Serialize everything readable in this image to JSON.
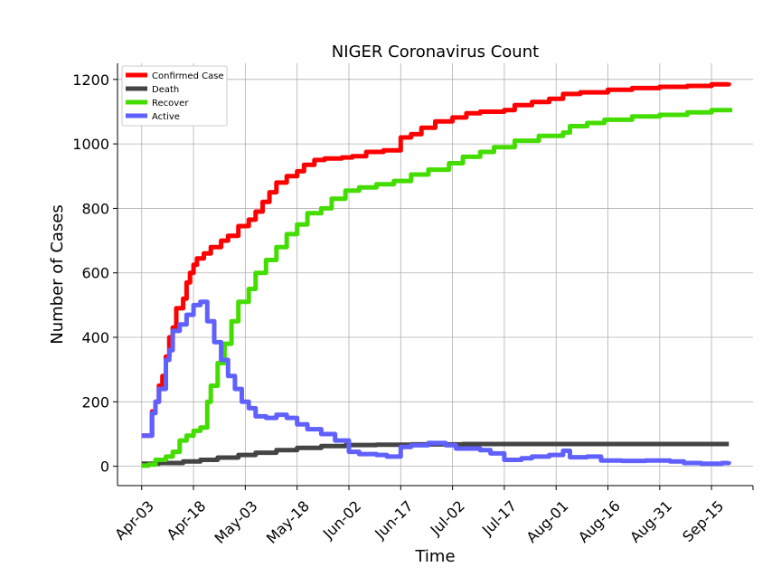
{
  "chart_data": {
    "type": "line",
    "title": "NIGER Coronavirus Count",
    "xlabel": "Time",
    "ylabel": "Number of Cases",
    "x_ticks": [
      "Apr-03",
      "Apr-18",
      "May-03",
      "May-18",
      "Jun-02",
      "Jun-17",
      "Jul-02",
      "Jul-17",
      "Aug-01",
      "Aug-16",
      "Aug-31",
      "Sep-15"
    ],
    "xlim": [
      "2020-03-27",
      "2020-09-27"
    ],
    "ylim": [
      -60,
      1250
    ],
    "y_ticks": [
      0,
      200,
      400,
      600,
      800,
      1000,
      1200
    ],
    "grid": true,
    "legend_position": "top-left",
    "series": [
      {
        "name": "Confirmed Case",
        "color": "#ff0000",
        "points": [
          [
            "2020-04-03",
            95
          ],
          [
            "2020-04-06",
            170
          ],
          [
            "2020-04-07",
            200
          ],
          [
            "2020-04-08",
            250
          ],
          [
            "2020-04-09",
            280
          ],
          [
            "2020-04-10",
            340
          ],
          [
            "2020-04-11",
            400
          ],
          [
            "2020-04-12",
            430
          ],
          [
            "2020-04-13",
            490
          ],
          [
            "2020-04-15",
            520
          ],
          [
            "2020-04-16",
            570
          ],
          [
            "2020-04-17",
            600
          ],
          [
            "2020-04-18",
            625
          ],
          [
            "2020-04-19",
            645
          ],
          [
            "2020-04-21",
            660
          ],
          [
            "2020-04-23",
            680
          ],
          [
            "2020-04-26",
            700
          ],
          [
            "2020-04-28",
            715
          ],
          [
            "2020-05-01",
            745
          ],
          [
            "2020-05-04",
            765
          ],
          [
            "2020-05-06",
            790
          ],
          [
            "2020-05-08",
            820
          ],
          [
            "2020-05-10",
            850
          ],
          [
            "2020-05-12",
            880
          ],
          [
            "2020-05-15",
            900
          ],
          [
            "2020-05-18",
            915
          ],
          [
            "2020-05-20",
            935
          ],
          [
            "2020-05-23",
            950
          ],
          [
            "2020-05-26",
            955
          ],
          [
            "2020-05-31",
            958
          ],
          [
            "2020-06-03",
            962
          ],
          [
            "2020-06-07",
            975
          ],
          [
            "2020-06-12",
            980
          ],
          [
            "2020-06-17",
            1020
          ],
          [
            "2020-06-20",
            1030
          ],
          [
            "2020-06-23",
            1050
          ],
          [
            "2020-06-27",
            1070
          ],
          [
            "2020-07-02",
            1082
          ],
          [
            "2020-07-06",
            1095
          ],
          [
            "2020-07-10",
            1100
          ],
          [
            "2020-07-17",
            1105
          ],
          [
            "2020-07-20",
            1120
          ],
          [
            "2020-07-25",
            1130
          ],
          [
            "2020-07-30",
            1140
          ],
          [
            "2020-08-03",
            1155
          ],
          [
            "2020-08-08",
            1160
          ],
          [
            "2020-08-16",
            1168
          ],
          [
            "2020-08-23",
            1173
          ],
          [
            "2020-08-31",
            1177
          ],
          [
            "2020-09-08",
            1180
          ],
          [
            "2020-09-15",
            1185
          ],
          [
            "2020-09-20",
            1190
          ]
        ]
      },
      {
        "name": "Death",
        "color": "#444444",
        "points": [
          [
            "2020-04-03",
            8
          ],
          [
            "2020-04-08",
            10
          ],
          [
            "2020-04-15",
            15
          ],
          [
            "2020-04-20",
            20
          ],
          [
            "2020-04-25",
            27
          ],
          [
            "2020-05-01",
            35
          ],
          [
            "2020-05-06",
            42
          ],
          [
            "2020-05-12",
            50
          ],
          [
            "2020-05-18",
            57
          ],
          [
            "2020-05-25",
            63
          ],
          [
            "2020-06-01",
            66
          ],
          [
            "2020-06-10",
            67
          ],
          [
            "2020-06-20",
            68
          ],
          [
            "2020-07-05",
            69
          ],
          [
            "2020-07-17",
            69
          ],
          [
            "2020-08-01",
            69
          ],
          [
            "2020-08-16",
            69
          ],
          [
            "2020-09-01",
            69
          ],
          [
            "2020-09-20",
            69
          ]
        ]
      },
      {
        "name": "Recover",
        "color": "#44dd00",
        "points": [
          [
            "2020-04-03",
            2
          ],
          [
            "2020-04-05",
            5
          ],
          [
            "2020-04-07",
            20
          ],
          [
            "2020-04-10",
            30
          ],
          [
            "2020-04-12",
            45
          ],
          [
            "2020-04-14",
            80
          ],
          [
            "2020-04-16",
            95
          ],
          [
            "2020-04-18",
            110
          ],
          [
            "2020-04-20",
            120
          ],
          [
            "2020-04-22",
            125
          ],
          [
            "2020-04-22",
            200
          ],
          [
            "2020-04-23",
            250
          ],
          [
            "2020-04-25",
            320
          ],
          [
            "2020-04-27",
            380
          ],
          [
            "2020-04-29",
            450
          ],
          [
            "2020-05-01",
            510
          ],
          [
            "2020-05-04",
            550
          ],
          [
            "2020-05-06",
            600
          ],
          [
            "2020-05-09",
            640
          ],
          [
            "2020-05-12",
            680
          ],
          [
            "2020-05-15",
            720
          ],
          [
            "2020-05-18",
            750
          ],
          [
            "2020-05-21",
            785
          ],
          [
            "2020-05-25",
            800
          ],
          [
            "2020-05-28",
            830
          ],
          [
            "2020-06-01",
            855
          ],
          [
            "2020-06-05",
            865
          ],
          [
            "2020-06-10",
            875
          ],
          [
            "2020-06-15",
            885
          ],
          [
            "2020-06-20",
            905
          ],
          [
            "2020-06-25",
            920
          ],
          [
            "2020-07-01",
            940
          ],
          [
            "2020-07-05",
            960
          ],
          [
            "2020-07-10",
            975
          ],
          [
            "2020-07-14",
            990
          ],
          [
            "2020-07-20",
            1010
          ],
          [
            "2020-07-27",
            1025
          ],
          [
            "2020-08-03",
            1035
          ],
          [
            "2020-08-05",
            1055
          ],
          [
            "2020-08-10",
            1065
          ],
          [
            "2020-08-15",
            1075
          ],
          [
            "2020-08-23",
            1085
          ],
          [
            "2020-08-31",
            1090
          ],
          [
            "2020-09-08",
            1098
          ],
          [
            "2020-09-15",
            1105
          ],
          [
            "2020-09-21",
            1105
          ]
        ]
      },
      {
        "name": "Active",
        "color": "#6060ff",
        "points": [
          [
            "2020-04-03",
            95
          ],
          [
            "2020-04-06",
            165
          ],
          [
            "2020-04-07",
            200
          ],
          [
            "2020-04-08",
            240
          ],
          [
            "2020-04-10",
            330
          ],
          [
            "2020-04-11",
            360
          ],
          [
            "2020-04-12",
            420
          ],
          [
            "2020-04-14",
            440
          ],
          [
            "2020-04-16",
            470
          ],
          [
            "2020-04-18",
            500
          ],
          [
            "2020-04-20",
            510
          ],
          [
            "2020-04-22",
            510
          ],
          [
            "2020-04-22",
            450
          ],
          [
            "2020-04-24",
            385
          ],
          [
            "2020-04-26",
            330
          ],
          [
            "2020-04-28",
            280
          ],
          [
            "2020-04-30",
            240
          ],
          [
            "2020-05-02",
            200
          ],
          [
            "2020-05-04",
            180
          ],
          [
            "2020-05-06",
            155
          ],
          [
            "2020-05-09",
            150
          ],
          [
            "2020-05-12",
            160
          ],
          [
            "2020-05-15",
            150
          ],
          [
            "2020-05-18",
            130
          ],
          [
            "2020-05-21",
            115
          ],
          [
            "2020-05-25",
            100
          ],
          [
            "2020-05-29",
            80
          ],
          [
            "2020-06-02",
            45
          ],
          [
            "2020-06-05",
            38
          ],
          [
            "2020-06-10",
            35
          ],
          [
            "2020-06-13",
            30
          ],
          [
            "2020-06-17",
            30
          ],
          [
            "2020-06-17",
            60
          ],
          [
            "2020-06-20",
            65
          ],
          [
            "2020-06-25",
            72
          ],
          [
            "2020-06-30",
            65
          ],
          [
            "2020-07-03",
            55
          ],
          [
            "2020-07-10",
            50
          ],
          [
            "2020-07-13",
            40
          ],
          [
            "2020-07-17",
            35
          ],
          [
            "2020-07-17",
            20
          ],
          [
            "2020-07-22",
            25
          ],
          [
            "2020-07-25",
            30
          ],
          [
            "2020-07-30",
            35
          ],
          [
            "2020-08-03",
            48
          ],
          [
            "2020-08-05",
            28
          ],
          [
            "2020-08-10",
            30
          ],
          [
            "2020-08-14",
            18
          ],
          [
            "2020-08-20",
            17
          ],
          [
            "2020-08-27",
            18
          ],
          [
            "2020-09-03",
            15
          ],
          [
            "2020-09-07",
            10
          ],
          [
            "2020-09-12",
            8
          ],
          [
            "2020-09-18",
            10
          ],
          [
            "2020-09-20",
            15
          ]
        ]
      }
    ]
  }
}
